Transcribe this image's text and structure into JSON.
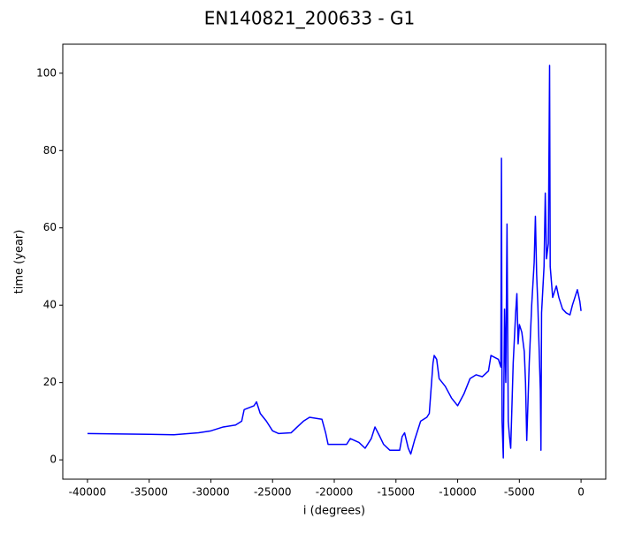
{
  "chart_data": {
    "type": "line",
    "title": "EN140821_200633 - G1",
    "xlabel": "i (degrees)",
    "ylabel": "time (year)",
    "x": [
      -40000,
      -35000,
      -33000,
      -31000,
      -30000,
      -29000,
      -28000,
      -27500,
      -27300,
      -26500,
      -26300,
      -26000,
      -25500,
      -25000,
      -24500,
      -23500,
      -23000,
      -22500,
      -22000,
      -21000,
      -20700,
      -20500,
      -19000,
      -18700,
      -18000,
      -17500,
      -17000,
      -16700,
      -16300,
      -16000,
      -15500,
      -14700,
      -14500,
      -14300,
      -14000,
      -13800,
      -13500,
      -13000,
      -12500,
      -12300,
      -12000,
      -11900,
      -11700,
      -11500,
      -11000,
      -10500,
      -10000,
      -9500,
      -9000,
      -8500,
      -8000,
      -7500,
      -7300,
      -6700,
      -6500,
      -6450,
      -6400,
      -6300,
      -6200,
      -6100,
      -6000,
      -5900,
      -5800,
      -5700,
      -5500,
      -5300,
      -5200,
      -5100,
      -5000,
      -4800,
      -4600,
      -4500,
      -4400,
      -4200,
      -4000,
      -3800,
      -3700,
      -3600,
      -3500,
      -3300,
      -3250,
      -3200,
      -3000,
      -2900,
      -2800,
      -2650,
      -2550,
      -2500,
      -2300,
      -2000,
      -1800,
      -1500,
      -1200,
      -900,
      -700,
      -500,
      -300,
      -100,
      0
    ],
    "series": [
      {
        "color": "#0000ff",
        "values": [
          6.8,
          6.6,
          6.5,
          7,
          7.5,
          8.5,
          9,
          10,
          13,
          14,
          15,
          12,
          10,
          7.5,
          6.8,
          7,
          8.5,
          10,
          11,
          10.5,
          7,
          4,
          4,
          5.5,
          4.5,
          3,
          5.5,
          8.5,
          6,
          4,
          2.5,
          2.5,
          6,
          7,
          3,
          1.5,
          5,
          10,
          11,
          12,
          25,
          27,
          26,
          21,
          19,
          16,
          14,
          17,
          21,
          22,
          21.5,
          23,
          27,
          26,
          24,
          78,
          10,
          0.5,
          39,
          20,
          61,
          10,
          6,
          3,
          25,
          38,
          43,
          30,
          35,
          33,
          28,
          20,
          5,
          25,
          40,
          51,
          63,
          48,
          40,
          18,
          2.5,
          38,
          50,
          69,
          52,
          56,
          102,
          50,
          42,
          45,
          42,
          39,
          38,
          37.5,
          40,
          42,
          44,
          41,
          38.5
        ]
      }
    ],
    "xlim": [
      -42000,
      2000
    ],
    "ylim": [
      -5,
      107.5
    ],
    "xticks": [
      -40000,
      -35000,
      -30000,
      -25000,
      -20000,
      -15000,
      -10000,
      -5000,
      0
    ],
    "yticks": [
      0,
      20,
      40,
      60,
      80,
      100
    ],
    "grid": false
  }
}
